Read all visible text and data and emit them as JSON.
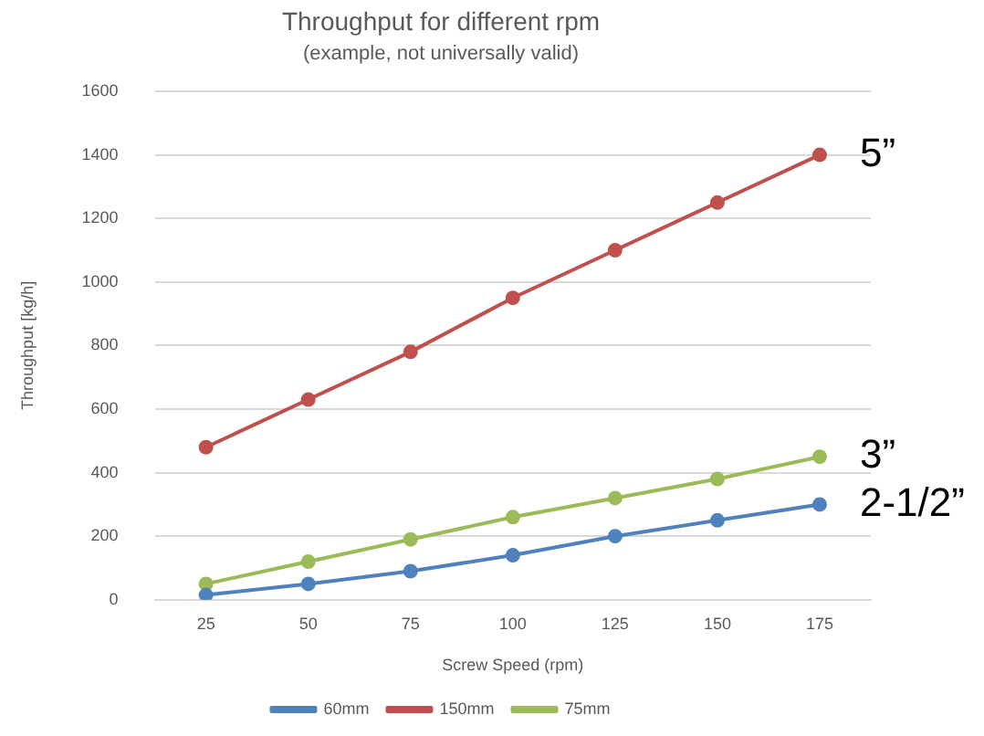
{
  "chart_data": {
    "type": "line",
    "title": "Throughput for different rpm",
    "subtitle": "(example, not universally valid)",
    "xlabel": "Screw Speed (rpm)",
    "ylabel": "Throughput [kg/h]",
    "categories": [
      "25",
      "50",
      "75",
      "100",
      "125",
      "150",
      "175"
    ],
    "series": [
      {
        "name": "60mm",
        "color": "#4f81bd",
        "values": [
          15,
          50,
          90,
          140,
          200,
          250,
          300
        ]
      },
      {
        "name": "150mm",
        "color": "#c0504d",
        "values": [
          480,
          630,
          780,
          950,
          1100,
          1250,
          1400
        ]
      },
      {
        "name": "75mm",
        "color": "#9bbb59",
        "values": [
          50,
          120,
          190,
          260,
          320,
          380,
          450
        ]
      }
    ],
    "ylim": [
      0,
      1600
    ],
    "yticks": [
      0,
      200,
      400,
      600,
      800,
      1000,
      1200,
      1400,
      1600
    ],
    "grid": "y",
    "legend": "bottom",
    "marker": "circle",
    "line_style": "solid",
    "annotations": [
      {
        "text": "5”",
        "x": "175",
        "y": 1400
      },
      {
        "text": "3”",
        "x": "175",
        "y": 450
      },
      {
        "text": "2-1/2”",
        "x": "175",
        "y": 300
      }
    ]
  }
}
